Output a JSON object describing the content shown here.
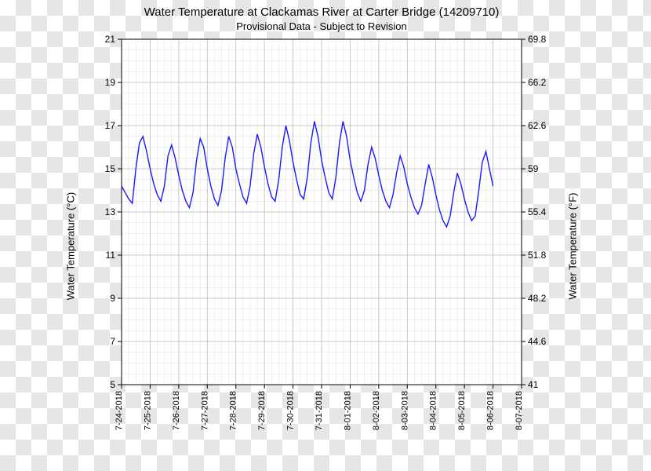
{
  "temperature_chart": {
    "type": "line",
    "title": "Water Temperature at Clackamas River at Carter Bridge (14209710)",
    "subtitle": "Provisional Data - Subject to Revision",
    "ylabel_left": "Water Temperature (°C)",
    "ylabel_right": "Water Temperature (°F)",
    "title_fontsize": 15,
    "subtitle_fontsize": 13,
    "label_fontsize": 13,
    "tick_fontsize": 12,
    "background_color": "transparent",
    "plot_background": "#ffffff",
    "grid_major_color": "#bdbdbd",
    "grid_minor_color": "#e0e0e0",
    "axis_color": "#000000",
    "line_color": "#1a1aff",
    "line_width": 1.4,
    "x": {
      "min": 0,
      "max": 14,
      "major_ticks": [
        0,
        1,
        2,
        3,
        4,
        5,
        6,
        7,
        8,
        9,
        10,
        11,
        12,
        13,
        14
      ],
      "tick_labels": [
        "7-24-2018",
        "7-25-2018",
        "7-26-2018",
        "7-27-2018",
        "7-28-2018",
        "7-29-2018",
        "7-30-2018",
        "7-31-2018",
        "8-01-2018",
        "8-02-2018",
        "8-03-2018",
        "8-04-2018",
        "8-05-2018",
        "8-06-2018",
        "8-07-2018"
      ]
    },
    "y_left": {
      "min": 5,
      "max": 21,
      "major_ticks": [
        5,
        7,
        9,
        11,
        13,
        15,
        17,
        19,
        21
      ]
    },
    "y_right": {
      "min": 41.0,
      "max": 69.8,
      "major_ticks": [
        41.0,
        44.6,
        48.2,
        51.8,
        55.4,
        59.0,
        62.6,
        66.2,
        69.8
      ]
    },
    "series_x": [
      0.0,
      0.125,
      0.25,
      0.375,
      0.5,
      0.625,
      0.75,
      0.875,
      1.0,
      1.125,
      1.25,
      1.375,
      1.5,
      1.625,
      1.75,
      1.875,
      2.0,
      2.125,
      2.25,
      2.375,
      2.5,
      2.625,
      2.75,
      2.875,
      3.0,
      3.125,
      3.25,
      3.375,
      3.5,
      3.625,
      3.75,
      3.875,
      4.0,
      4.125,
      4.25,
      4.375,
      4.5,
      4.625,
      4.75,
      4.875,
      5.0,
      5.125,
      5.25,
      5.375,
      5.5,
      5.625,
      5.75,
      5.875,
      6.0,
      6.125,
      6.25,
      6.375,
      6.5,
      6.625,
      6.75,
      6.875,
      7.0,
      7.125,
      7.25,
      7.375,
      7.5,
      7.625,
      7.75,
      7.875,
      8.0,
      8.125,
      8.25,
      8.375,
      8.5,
      8.625,
      8.75,
      8.875,
      9.0,
      9.125,
      9.25,
      9.375,
      9.5,
      9.625,
      9.75,
      9.875,
      10.0,
      10.125,
      10.25,
      10.375,
      10.5,
      10.625,
      10.75,
      10.875,
      11.0,
      11.125,
      11.25,
      11.375,
      11.5,
      11.625,
      11.75,
      11.875,
      12.0,
      12.125,
      12.25,
      12.375,
      12.5,
      12.625,
      12.75,
      12.875,
      13.0
    ],
    "series_y": [
      14.2,
      13.9,
      13.6,
      13.4,
      15.0,
      16.2,
      16.5,
      15.8,
      15.0,
      14.3,
      13.8,
      13.5,
      14.2,
      15.6,
      16.1,
      15.5,
      14.7,
      14.0,
      13.5,
      13.2,
      13.9,
      15.4,
      16.4,
      16.0,
      15.0,
      14.2,
      13.6,
      13.3,
      14.0,
      15.5,
      16.5,
      16.0,
      15.0,
      14.3,
      13.7,
      13.4,
      14.2,
      15.7,
      16.6,
      16.0,
      15.1,
      14.3,
      13.7,
      13.5,
      14.5,
      16.0,
      17.0,
      16.3,
      15.3,
      14.5,
      13.8,
      13.6,
      14.6,
      16.2,
      17.2,
      16.5,
      15.4,
      14.6,
      13.9,
      13.6,
      14.6,
      16.2,
      17.2,
      16.5,
      15.4,
      14.6,
      13.9,
      13.5,
      14.0,
      15.2,
      16.0,
      15.5,
      14.7,
      14.0,
      13.5,
      13.2,
      13.8,
      14.8,
      15.6,
      15.1,
      14.3,
      13.7,
      13.2,
      12.9,
      13.3,
      14.3,
      15.2,
      14.6,
      13.8,
      13.1,
      12.6,
      12.3,
      12.8,
      13.9,
      14.8,
      14.3,
      13.6,
      13.0,
      12.6,
      12.8,
      14.0,
      15.3,
      15.8,
      15.0,
      14.2
    ]
  }
}
